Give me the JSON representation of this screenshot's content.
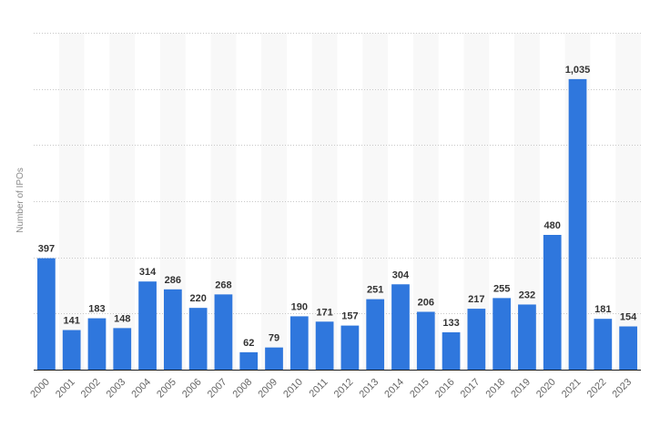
{
  "chart_data": {
    "type": "bar",
    "title": "",
    "xlabel": "",
    "ylabel": "Number of IPOs",
    "categories": [
      "2000",
      "2001",
      "2002",
      "2003",
      "2004",
      "2005",
      "2006",
      "2007",
      "2008",
      "2009",
      "2010",
      "2011",
      "2012",
      "2013",
      "2014",
      "2015",
      "2016",
      "2017",
      "2018",
      "2019",
      "2020",
      "2021",
      "2022",
      "2023"
    ],
    "values": [
      397,
      141,
      183,
      148,
      314,
      286,
      220,
      268,
      62,
      79,
      190,
      171,
      157,
      251,
      304,
      206,
      133,
      217,
      255,
      232,
      480,
      1035,
      181,
      154
    ],
    "value_labels": [
      "397",
      "141",
      "183",
      "148",
      "314",
      "286",
      "220",
      "268",
      "62",
      "79",
      "190",
      "171",
      "157",
      "251",
      "304",
      "206",
      "133",
      "217",
      "255",
      "232",
      "480",
      "1,035",
      "181",
      "154"
    ],
    "ylim": [
      0,
      1200
    ],
    "grid": true,
    "grid_style": "dotted horizontal",
    "alternating_column_shading": true,
    "bar_color": "#2f77dd",
    "legend": "none"
  }
}
